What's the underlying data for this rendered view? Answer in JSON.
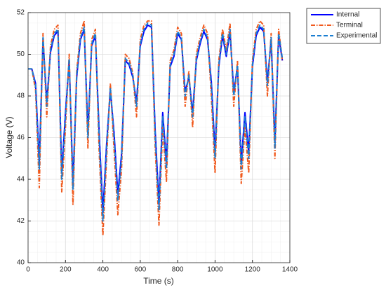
{
  "chart_data": {
    "type": "line",
    "xlabel": "Time (s)",
    "ylabel": "Voltage (V)",
    "x": [
      0,
      20,
      40,
      60,
      80,
      100,
      120,
      140,
      160,
      180,
      200,
      220,
      240,
      260,
      280,
      300,
      320,
      340,
      360,
      380,
      400,
      420,
      440,
      460,
      480,
      500,
      520,
      540,
      560,
      580,
      600,
      620,
      640,
      660,
      680,
      700,
      720,
      740,
      760,
      780,
      800,
      820,
      840,
      860,
      880,
      900,
      920,
      940,
      960,
      980,
      1000,
      1020,
      1040,
      1060,
      1080,
      1100,
      1120,
      1140,
      1160,
      1180,
      1200,
      1220,
      1240,
      1260,
      1280,
      1300,
      1320,
      1340,
      1360
    ],
    "series": [
      {
        "name": "Internal",
        "color": "#0000ff",
        "style": "solid",
        "values": [
          49.3,
          49.3,
          48.6,
          44.8,
          50.7,
          47.7,
          50.1,
          50.9,
          51.1,
          44.3,
          47.2,
          49.7,
          43.8,
          48.9,
          50.7,
          51.2,
          46.3,
          50.4,
          50.9,
          46.3,
          42.4,
          45.7,
          48.3,
          46.2,
          43.3,
          45.2,
          49.7,
          49.5,
          48.9,
          47.7,
          50.4,
          51.1,
          51.4,
          51.3,
          46.3,
          42.8,
          47.2,
          44.8,
          49.4,
          49.9,
          51.0,
          50.7,
          48.2,
          48.9,
          47.2,
          49.7,
          50.5,
          51.1,
          50.7,
          48.7,
          45.3,
          49.4,
          50.9,
          49.9,
          51.1,
          48.2,
          49.4,
          44.8,
          47.2,
          45.3,
          49.4,
          50.9,
          51.3,
          51.1,
          48.7,
          50.7,
          45.8,
          50.9,
          49.7
        ]
      },
      {
        "name": "Terminal",
        "color": "#f05a1e",
        "style": "dashdot",
        "values": [
          49.3,
          49.3,
          48.3,
          43.6,
          51.0,
          47.0,
          50.4,
          51.2,
          51.4,
          43.4,
          46.5,
          50.0,
          42.8,
          49.2,
          51.0,
          51.6,
          45.5,
          50.7,
          51.2,
          45.4,
          41.3,
          45.0,
          48.6,
          45.4,
          42.3,
          44.5,
          50.0,
          49.8,
          49.1,
          47.0,
          50.7,
          51.4,
          51.6,
          51.6,
          45.5,
          41.8,
          46.5,
          43.9,
          49.7,
          50.2,
          51.3,
          51.0,
          47.5,
          49.2,
          46.5,
          50.0,
          50.8,
          51.4,
          51.0,
          48.0,
          44.3,
          49.7,
          51.2,
          50.2,
          51.5,
          47.5,
          49.7,
          43.8,
          46.5,
          44.3,
          49.7,
          51.2,
          51.6,
          51.4,
          48.0,
          51.0,
          45.0,
          51.2,
          49.7
        ]
      },
      {
        "name": "Experimental",
        "color": "#1a7ed1",
        "style": "dashed",
        "values": [
          49.3,
          49.3,
          48.5,
          44.5,
          50.8,
          47.5,
          50.2,
          51.0,
          51.2,
          44.0,
          47.0,
          49.8,
          43.5,
          49.0,
          50.8,
          51.3,
          46.0,
          50.5,
          51.0,
          46.0,
          42.0,
          45.5,
          48.4,
          46.0,
          43.0,
          45.0,
          49.8,
          49.6,
          49.0,
          47.5,
          50.5,
          51.2,
          51.5,
          51.4,
          46.0,
          42.5,
          47.0,
          44.5,
          49.5,
          50.0,
          51.1,
          50.8,
          48.0,
          49.0,
          47.0,
          49.8,
          50.6,
          51.2,
          50.8,
          48.5,
          45.0,
          49.5,
          51.0,
          50.0,
          51.2,
          48.0,
          49.5,
          44.5,
          47.0,
          45.0,
          49.5,
          51.0,
          51.4,
          51.2,
          48.5,
          50.8,
          45.5,
          51.0,
          49.8
        ]
      }
    ],
    "xlim": [
      0,
      1400
    ],
    "xticks": [
      0,
      200,
      400,
      600,
      800,
      1000,
      1200,
      1400
    ],
    "ylim": [
      40,
      52
    ],
    "yticks": [
      40,
      42,
      44,
      46,
      48,
      50,
      52
    ],
    "grid": true,
    "minor_grid": true,
    "legend": "northeast-outside"
  }
}
